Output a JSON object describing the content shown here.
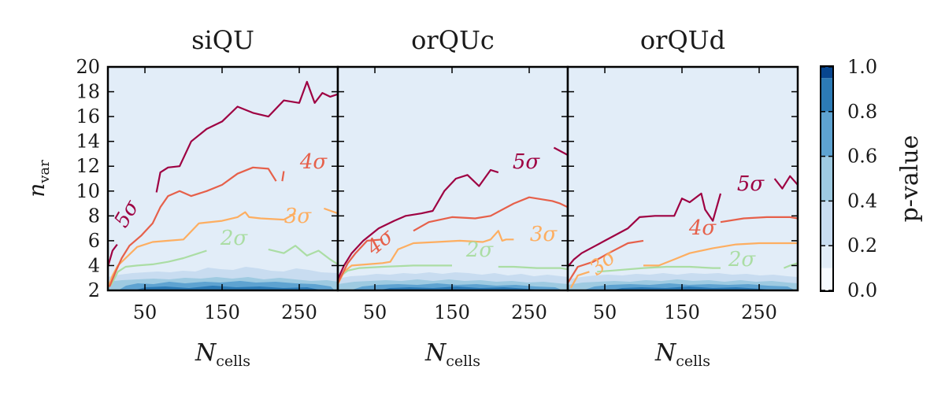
{
  "figure": {
    "colorbar": {
      "label": "p-value",
      "ticks": [
        "0.0",
        "0.2",
        "0.4",
        "0.6",
        "0.8",
        "1.0"
      ],
      "levels": [
        0.0,
        0.2,
        0.4,
        0.6,
        0.8,
        1.0
      ],
      "colors": [
        "#f7fbff",
        "#e2edf8",
        "#c8dcf0",
        "#9ecae1",
        "#5ea3d1",
        "#2c7bb6",
        "#08468f"
      ]
    },
    "sigma_colors": {
      "2": "#abdda4",
      "3": "#fdae61",
      "4": "#e6604a",
      "5": "#9e0142"
    }
  },
  "chart_data": [
    {
      "type": "contour",
      "title": "siQU",
      "xlabel": "N",
      "xlabel_sub": "cells",
      "ylabel": "n",
      "ylabel_sub": "var",
      "xlim": [
        2,
        300
      ],
      "ylim": [
        2,
        20
      ],
      "xticks": [
        50,
        150,
        250
      ],
      "yticks": [
        2,
        4,
        6,
        8,
        10,
        12,
        14,
        16,
        18,
        20
      ],
      "background_pvalue_level": "0.0-0.2",
      "contours": [
        {
          "sigma": "2σ",
          "label": "2σ",
          "segments": [
            {
              "x": [
                6,
                15,
                25,
                40,
                60,
                80,
                100,
                120,
                130
              ],
              "y": [
                2.4,
                3.5,
                3.9,
                4.0,
                4.1,
                4.3,
                4.6,
                5.0,
                5.2
              ]
            },
            {
              "x": [
                210,
                230,
                245,
                260,
                275,
                290,
                300
              ],
              "y": [
                5.3,
                5.0,
                5.6,
                4.8,
                5.2,
                4.5,
                4.1
              ]
            }
          ]
        },
        {
          "sigma": "3σ",
          "label": "3σ",
          "segments": [
            {
              "x": [
                2,
                8,
                15,
                25,
                40,
                60,
                80,
                100,
                120,
                150,
                170,
                180,
                185,
                200,
                230,
                245
              ],
              "y": [
                2.2,
                3.2,
                4.0,
                4.6,
                5.5,
                5.9,
                6.0,
                6.1,
                7.4,
                7.6,
                7.9,
                8.3,
                7.9,
                7.8,
                7.7,
                8.2
              ]
            },
            {
              "x": [
                282,
                300
              ],
              "y": [
                8.6,
                8.2
              ]
            }
          ]
        },
        {
          "sigma": "4σ",
          "label": "4σ",
          "segments": [
            {
              "x": [
                4,
                12,
                20,
                30,
                45,
                60,
                70,
                80,
                95,
                110,
                130,
                150,
                170,
                190,
                210,
                220
              ],
              "y": [
                2.3,
                3.5,
                4.6,
                5.6,
                6.4,
                7.4,
                8.7,
                9.6,
                10.0,
                9.6,
                10.0,
                10.5,
                11.4,
                11.9,
                11.8,
                10.8
              ]
            },
            {
              "x": [
                228,
                230
              ],
              "y": [
                10.8,
                11.6
              ]
            }
          ]
        },
        {
          "sigma": "5σ",
          "label": "5σ",
          "segments": [
            {
              "x": [
                2,
                8,
                14
              ],
              "y": [
                3.9,
                5.2,
                5.7
              ]
            },
            {
              "x": [
                65,
                70,
                80,
                95,
                110,
                130,
                150,
                170,
                190,
                210,
                230,
                250,
                260,
                270,
                280,
                290,
                300
              ],
              "y": [
                9.9,
                11.5,
                11.9,
                12.0,
                14.0,
                15.0,
                15.6,
                16.8,
                16.3,
                16.0,
                17.3,
                17.1,
                18.8,
                17.1,
                17.9,
                17.6,
                17.8
              ]
            }
          ]
        }
      ]
    },
    {
      "type": "contour",
      "title": "orQUc",
      "xlabel": "N",
      "xlabel_sub": "cells",
      "xlim": [
        2,
        300
      ],
      "ylim": [
        2,
        20
      ],
      "xticks": [
        50,
        150,
        250
      ],
      "background_pvalue_level": "0.0-0.2",
      "contours": [
        {
          "sigma": "2σ",
          "label": "2σ",
          "segments": [
            {
              "x": [
                2,
                15,
                30,
                60,
                100,
                130,
                150
              ],
              "y": [
                3.0,
                3.6,
                3.8,
                3.9,
                4.0,
                4.0,
                4.0
              ]
            },
            {
              "x": [
                210,
                230,
                260,
                290,
                300
              ],
              "y": [
                3.9,
                3.9,
                3.8,
                3.8,
                3.7
              ]
            }
          ]
        },
        {
          "sigma": "3σ",
          "label": "3σ",
          "segments": [
            {
              "x": [
                2,
                10,
                20,
                40,
                60,
                70,
                80,
                100,
                130,
                160,
                190,
                200,
                210,
                215,
                220,
                230
              ],
              "y": [
                2.5,
                3.5,
                4.0,
                4.1,
                4.2,
                4.3,
                5.3,
                5.8,
                5.9,
                6.0,
                5.9,
                6.1,
                6.8,
                6.0,
                6.1,
                6.1
              ]
            }
          ]
        },
        {
          "sigma": "4σ",
          "label": "4σ",
          "segments": [
            {
              "x": [
                2,
                15,
                25,
                40,
                60
              ],
              "y": [
                2.6,
                4.2,
                5.0,
                6.0,
                6.1
              ]
            },
            {
              "x": [
                100,
                120,
                150,
                180,
                200,
                230,
                250,
                280,
                290,
                300
              ],
              "y": [
                6.8,
                7.5,
                7.9,
                7.8,
                8.0,
                9.0,
                9.5,
                9.2,
                9.0,
                8.7
              ]
            }
          ]
        },
        {
          "sigma": "5σ",
          "label": "5σ",
          "segments": [
            {
              "x": [
                2,
                10,
                20,
                35,
                55,
                75,
                90,
                110,
                125,
                140,
                155,
                170,
                185,
                200,
                210
              ],
              "y": [
                2.9,
                4.0,
                5.0,
                6.0,
                7.0,
                7.6,
                8.0,
                8.2,
                8.4,
                10.0,
                11.0,
                11.3,
                10.4,
                11.7,
                11.5
              ]
            },
            {
              "x": [
                282,
                300
              ],
              "y": [
                13.5,
                12.9
              ]
            }
          ]
        }
      ]
    },
    {
      "type": "contour",
      "title": "orQUd",
      "xlabel": "N",
      "xlabel_sub": "cells",
      "xlim": [
        2,
        300
      ],
      "ylim": [
        2,
        20
      ],
      "xticks": [
        50,
        150,
        250
      ],
      "background_pvalue_level": "0.0-0.2",
      "contours": [
        {
          "sigma": "2σ",
          "label": "2σ",
          "segments": [
            {
              "x": [
                40,
                60,
                100,
                130,
                160,
                190,
                200
              ],
              "y": [
                3.5,
                3.6,
                3.8,
                3.9,
                3.9,
                3.8,
                3.8
              ]
            },
            {
              "x": [
                282,
                290,
                300
              ],
              "y": [
                3.8,
                4.0,
                4.2
              ]
            }
          ]
        },
        {
          "sigma": "3σ",
          "label": "3σ",
          "segments": [
            {
              "x": [
                6,
                15,
                30
              ],
              "y": [
                2.2,
                3.2,
                3.5
              ]
            },
            {
              "x": [
                100,
                120,
                140,
                160,
                190,
                220,
                250,
                280,
                300
              ],
              "y": [
                4.0,
                4.0,
                4.5,
                5.0,
                5.4,
                5.7,
                5.8,
                5.8,
                5.8
              ]
            }
          ]
        },
        {
          "sigma": "4σ",
          "label": "4σ",
          "segments": [
            {
              "x": [
                2,
                15,
                35,
                55,
                80,
                100
              ],
              "y": [
                2.6,
                3.9,
                4.3,
                5.0,
                5.8,
                6.0
              ]
            },
            {
              "x": [
                200,
                230,
                260,
                290,
                300
              ],
              "y": [
                7.5,
                7.8,
                7.9,
                7.9,
                7.8
              ]
            }
          ]
        },
        {
          "sigma": "5σ",
          "label": "5σ",
          "segments": [
            {
              "x": [
                2,
                10,
                20,
                35,
                50,
                65,
                80,
                95,
                115,
                140,
                150,
                160,
                175,
                180,
                190,
                200
              ],
              "y": [
                3.9,
                4.5,
                5.0,
                5.5,
                6.0,
                6.5,
                7.0,
                7.9,
                8.0,
                8.0,
                9.4,
                9.1,
                9.8,
                8.5,
                7.6,
                9.8
              ]
            },
            {
              "x": [
                270,
                280,
                290,
                300
              ],
              "y": [
                11.0,
                10.2,
                11.2,
                10.5
              ]
            }
          ]
        }
      ]
    }
  ]
}
